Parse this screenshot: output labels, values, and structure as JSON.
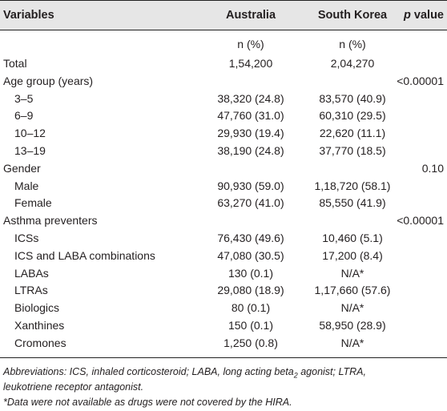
{
  "header": {
    "variables": "Variables",
    "australia": "Australia",
    "south_korea": "South Korea",
    "p_value_p": "p",
    "p_value_rest": " value"
  },
  "subheader": {
    "australia": "n (%)",
    "south_korea": "n (%)"
  },
  "rows": [
    {
      "label": "Total",
      "indent": false,
      "australia": "1,54,200",
      "south_korea": "2,04,270",
      "p": ""
    },
    {
      "label": "Age group (years)",
      "indent": false,
      "australia": "",
      "south_korea": "",
      "p": "<0.00001"
    },
    {
      "label": "3–5",
      "indent": true,
      "australia": "38,320 (24.8)",
      "south_korea": "83,570 (40.9)",
      "p": ""
    },
    {
      "label": "6–9",
      "indent": true,
      "australia": "47,760 (31.0)",
      "south_korea": "60,310 (29.5)",
      "p": ""
    },
    {
      "label": "10–12",
      "indent": true,
      "australia": "29,930 (19.4)",
      "south_korea": "22,620 (11.1)",
      "p": ""
    },
    {
      "label": "13–19",
      "indent": true,
      "australia": "38,190 (24.8)",
      "south_korea": "37,770 (18.5)",
      "p": ""
    },
    {
      "label": "Gender",
      "indent": false,
      "australia": "",
      "south_korea": "",
      "p": "0.10"
    },
    {
      "label": "Male",
      "indent": true,
      "australia": "90,930 (59.0)",
      "south_korea": "1,18,720 (58.1)",
      "p": ""
    },
    {
      "label": "Female",
      "indent": true,
      "australia": "63,270 (41.0)",
      "south_korea": "85,550 (41.9)",
      "p": ""
    },
    {
      "label": "Asthma preventers",
      "indent": false,
      "australia": "",
      "south_korea": "",
      "p": "<0.00001"
    },
    {
      "label": "ICSs",
      "indent": true,
      "australia": "76,430 (49.6)",
      "south_korea": "10,460 (5.1)",
      "p": ""
    },
    {
      "label": "ICS and LABA combinations",
      "indent": true,
      "australia": "47,080 (30.5)",
      "south_korea": "17,200 (8.4)",
      "p": ""
    },
    {
      "label": "LABAs",
      "indent": true,
      "australia": "130 (0.1)",
      "south_korea": "N/A*",
      "p": ""
    },
    {
      "label": "LTRAs",
      "indent": true,
      "australia": "29,080 (18.9)",
      "south_korea": "1,17,660 (57.6)",
      "p": ""
    },
    {
      "label": "Biologics",
      "indent": true,
      "australia": "80 (0.1)",
      "south_korea": "N/A*",
      "p": ""
    },
    {
      "label": "Xanthines",
      "indent": true,
      "australia": "150 (0.1)",
      "south_korea": "58,950 (28.9)",
      "p": ""
    },
    {
      "label": "Cromones",
      "indent": true,
      "australia": "1,250 (0.8)",
      "south_korea": "N/A*",
      "p": ""
    }
  ],
  "footnotes": {
    "abbr_a": "Abbreviations: ICS, inhaled corticosteroid; LABA, long acting beta",
    "abbr_sub": "2",
    "abbr_b": " agonist; LTRA,",
    "abbr_c": "leukotriene receptor antagonist.",
    "note": "*Data were not available as drugs were not covered by the HIRA."
  }
}
